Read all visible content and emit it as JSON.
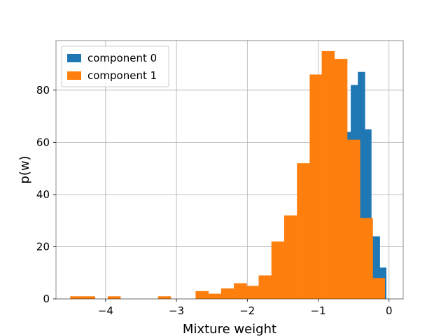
{
  "chart_data": {
    "type": "bar",
    "subtype": "overlaid-histogram",
    "xlabel": "Mixture weight",
    "ylabel": "p(w)",
    "xlim": [
      -4.7,
      0.2
    ],
    "ylim": [
      0,
      99
    ],
    "xticks": [
      {
        "value": -4,
        "label": "−4"
      },
      {
        "value": -3,
        "label": "−3"
      },
      {
        "value": -2,
        "label": "−2"
      },
      {
        "value": -1,
        "label": "−1"
      },
      {
        "value": 0,
        "label": "0"
      }
    ],
    "yticks": [
      {
        "value": 0,
        "label": "0"
      },
      {
        "value": 20,
        "label": "20"
      },
      {
        "value": 40,
        "label": "40"
      },
      {
        "value": 60,
        "label": "60"
      },
      {
        "value": 80,
        "label": "80"
      }
    ],
    "grid": true,
    "legend": {
      "placement": "top-left",
      "entries": [
        {
          "label": "component 0",
          "color": "#1f77b4"
        },
        {
          "label": "component 1",
          "color": "#ff7f0e"
        }
      ]
    },
    "series": [
      {
        "name": "component 0",
        "color": "#1f77b4",
        "bins": [
          {
            "x0": -0.6,
            "x1": -0.54,
            "count": 64
          },
          {
            "x0": -0.54,
            "x1": -0.44,
            "count": 82
          },
          {
            "x0": -0.44,
            "x1": -0.34,
            "count": 87
          },
          {
            "x0": -0.34,
            "x1": -0.25,
            "count": 65
          },
          {
            "x0": -0.25,
            "x1": -0.13,
            "count": 24
          },
          {
            "x0": -0.13,
            "x1": -0.04,
            "count": 12
          }
        ]
      },
      {
        "name": "component 1",
        "color": "#ff7f0e",
        "bins": [
          {
            "x0": -4.5,
            "x1": -4.32,
            "count": 1
          },
          {
            "x0": -4.32,
            "x1": -4.15,
            "count": 1
          },
          {
            "x0": -3.97,
            "x1": -3.79,
            "count": 1
          },
          {
            "x0": -3.26,
            "x1": -3.08,
            "count": 1
          },
          {
            "x0": -2.73,
            "x1": -2.55,
            "count": 3
          },
          {
            "x0": -2.55,
            "x1": -2.37,
            "count": 2
          },
          {
            "x0": -2.37,
            "x1": -2.19,
            "count": 4
          },
          {
            "x0": -2.19,
            "x1": -2.01,
            "count": 6
          },
          {
            "x0": -2.01,
            "x1": -1.84,
            "count": 5
          },
          {
            "x0": -1.84,
            "x1": -1.66,
            "count": 9
          },
          {
            "x0": -1.66,
            "x1": -1.48,
            "count": 22
          },
          {
            "x0": -1.48,
            "x1": -1.3,
            "count": 32
          },
          {
            "x0": -1.3,
            "x1": -1.12,
            "count": 52
          },
          {
            "x0": -1.12,
            "x1": -0.95,
            "count": 86
          },
          {
            "x0": -0.95,
            "x1": -0.77,
            "count": 95
          },
          {
            "x0": -0.77,
            "x1": -0.59,
            "count": 92
          },
          {
            "x0": -0.59,
            "x1": -0.41,
            "count": 61
          },
          {
            "x0": -0.41,
            "x1": -0.23,
            "count": 31
          },
          {
            "x0": -0.23,
            "x1": -0.06,
            "count": 8
          }
        ]
      }
    ]
  }
}
